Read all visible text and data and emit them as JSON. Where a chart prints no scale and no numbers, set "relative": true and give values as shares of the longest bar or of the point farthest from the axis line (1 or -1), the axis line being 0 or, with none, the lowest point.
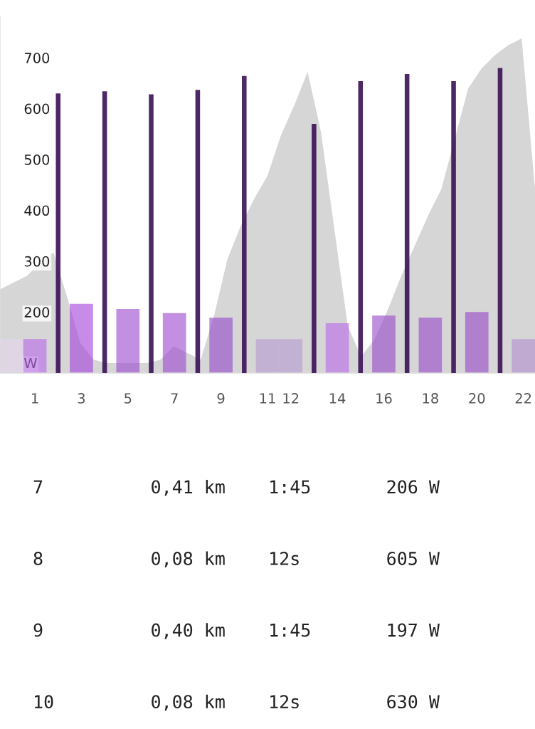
{
  "chart_data": [
    {
      "type": "area",
      "relative": true,
      "categories": [
        null,
        null,
        null,
        null,
        null,
        null,
        null,
        null,
        null,
        null,
        null,
        null,
        null,
        null,
        null,
        null,
        null,
        null,
        null,
        null,
        null,
        null,
        null,
        null,
        null,
        null,
        null,
        null,
        null,
        null,
        null,
        null,
        null,
        null,
        null,
        null,
        null,
        null,
        null,
        null,
        null
      ],
      "series": [
        {
          "color": "#d6d6d6",
          "values": [
            0.25,
            0.27,
            0.29,
            0.33,
            0.36,
            0.23,
            0.09,
            0.04,
            0.03,
            0.03,
            0.03,
            0.03,
            0.04,
            0.08,
            0.06,
            0.04,
            0.17,
            0.34,
            0.44,
            0.52,
            0.59,
            0.71,
            0.8,
            0.9,
            0.72,
            0.43,
            0.14,
            0.05,
            0.1,
            0.19,
            0.29,
            0.38,
            0.47,
            0.55,
            0.7,
            0.85,
            0.91,
            0.95,
            0.98,
            1,
            0.55
          ]
        }
      ]
    },
    {
      "type": "bar",
      "ylim": [
        80,
        780
      ],
      "grid": false,
      "yticks": [
        {
          "value": 100,
          "label": "W"
        },
        200,
        300,
        400,
        500,
        600,
        700
      ],
      "categories": [
        null,
        "1",
        null,
        "3",
        null,
        "5",
        null,
        "7",
        null,
        "9",
        null,
        "11",
        "12",
        null,
        "14",
        null,
        "16",
        null,
        "18",
        null,
        "20",
        null,
        "22"
      ],
      "series": [
        {
          "type": "bar",
          "values": [
            147,
            147,
            null,
            216,
            null,
            206,
            null,
            198,
            null,
            189,
            null,
            147,
            147,
            null,
            178,
            null,
            193,
            null,
            189,
            null,
            200,
            null,
            147
          ],
          "colors": [
            "#e5d4ef",
            "#b865e8",
            null,
            "#a23fdc",
            null,
            "#9b45d0",
            null,
            "#9a45cf",
            null,
            "#9545c9",
            null,
            "#b698d2",
            "#b698d2",
            null,
            "#b866e8",
            null,
            "#9646c9",
            null,
            "#9646c9",
            null,
            "#9646c9",
            null,
            "#b08ccd"
          ]
        },
        {
          "type": "bar",
          "values": [
            null,
            null,
            630,
            null,
            634,
            null,
            628,
            null,
            637,
            null,
            664,
            null,
            null,
            570,
            null,
            654,
            null,
            668,
            null,
            654,
            null,
            680,
            null
          ],
          "color": "#3b0f55"
        }
      ]
    },
    {
      "type": "other",
      "annotations": [
        "7          0,41 km    1:45       206 W",
        "8          0,08 km    12s        605 W",
        "9          0,40 km    1:45       197 W",
        "10         0,08 km    12s        630 W"
      ]
    }
  ]
}
